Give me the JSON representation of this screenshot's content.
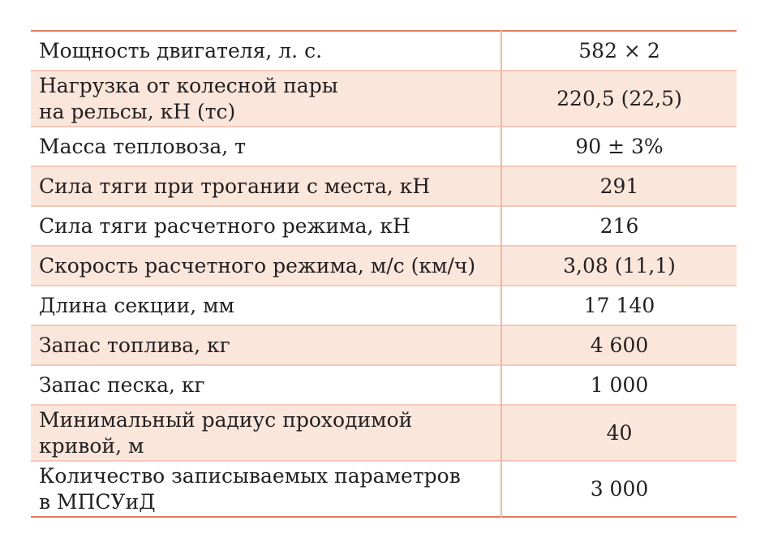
{
  "table": {
    "rows": [
      {
        "param_lines": [
          "Мощность двигателя, л. с."
        ],
        "value": "582 × 2"
      },
      {
        "param_lines": [
          "Нагрузка от колесной пары",
          "на рельсы, кН (тс)"
        ],
        "value": "220,5 (22,5)"
      },
      {
        "param_lines": [
          "Масса тепловоза, т"
        ],
        "value": "90 ± 3%"
      },
      {
        "param_lines": [
          "Сила тяги при трогании с места, кН"
        ],
        "value": "291"
      },
      {
        "param_lines": [
          "Сила тяги расчетного режима, кН"
        ],
        "value": "216"
      },
      {
        "param_lines": [
          "Скорость расчетного режима, м/с (км/ч)"
        ],
        "value": "3,08 (11,1)"
      },
      {
        "param_lines": [
          "Длина секции, мм"
        ],
        "value": "17 140"
      },
      {
        "param_lines": [
          "Запас топлива, кг"
        ],
        "value": "4 600"
      },
      {
        "param_lines": [
          "Запас песка, кг"
        ],
        "value": "1 000"
      },
      {
        "param_lines": [
          "Минимальный радиус проходимой",
          "кривой, м"
        ],
        "value": "40"
      },
      {
        "param_lines": [
          "Количество записываемых параметров",
          "в МПСУиД"
        ],
        "value": "3 000"
      }
    ]
  }
}
